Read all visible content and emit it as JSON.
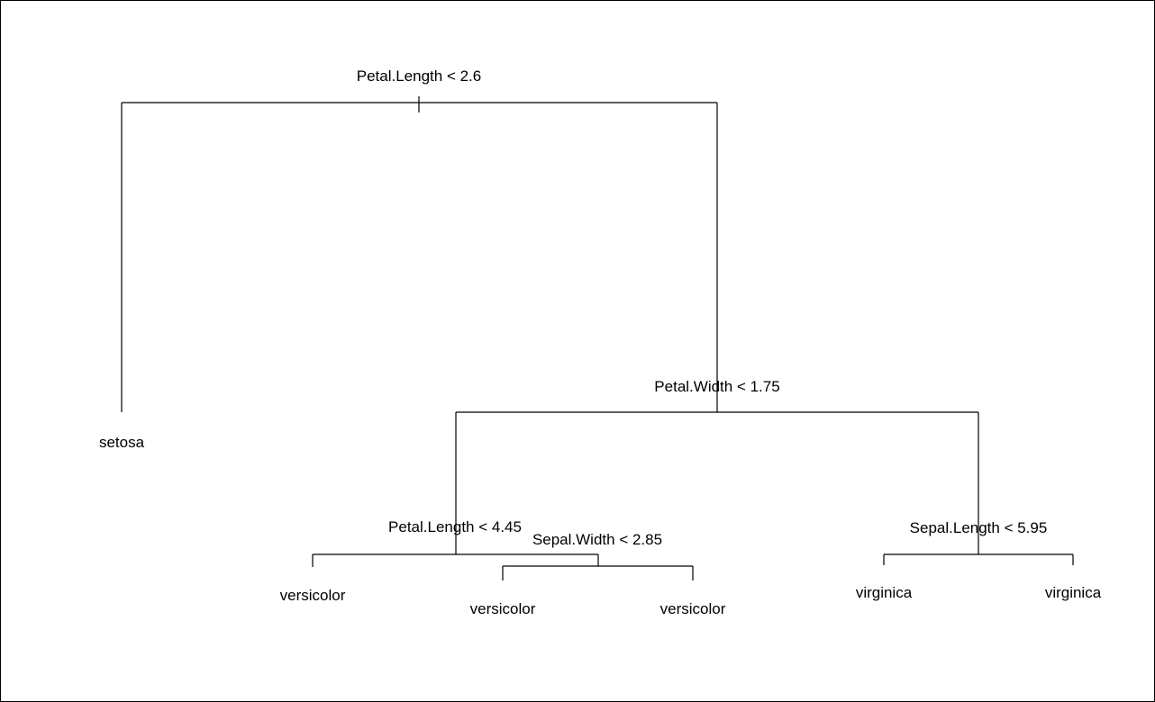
{
  "tree": {
    "root": {
      "split": "Petal.Length < 2.6",
      "left": {
        "leaf": "setosa"
      },
      "right": {
        "split": "Petal.Width < 1.75",
        "left": {
          "split": "Petal.Length < 4.45",
          "left": {
            "leaf": "versicolor"
          },
          "right": {
            "split": "Sepal.Width < 2.85",
            "left": {
              "leaf": "versicolor"
            },
            "right": {
              "leaf": "versicolor"
            }
          }
        },
        "right": {
          "split": "Sepal.Length < 5.95",
          "left": {
            "leaf": "virginica"
          },
          "right": {
            "leaf": "virginica"
          }
        }
      }
    }
  },
  "style": {
    "line_color": "#000000",
    "background": "#ffffff"
  }
}
